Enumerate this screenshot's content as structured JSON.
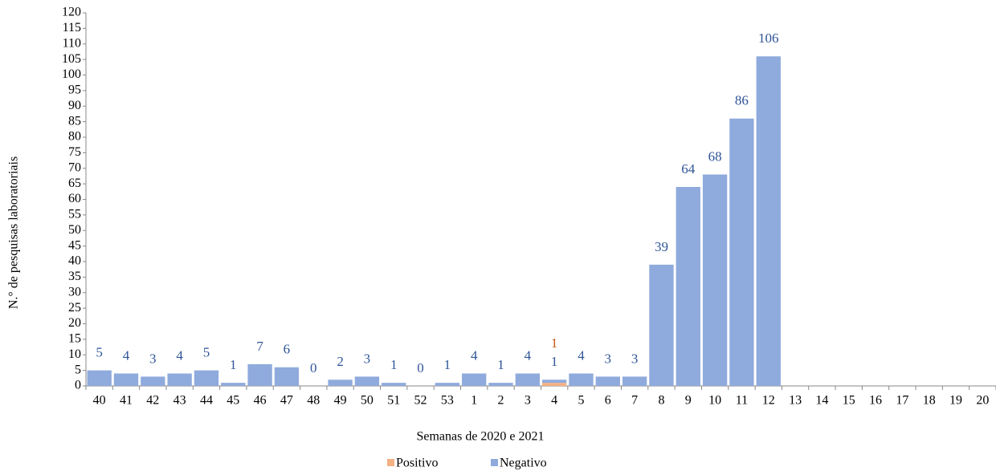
{
  "chart_data": {
    "type": "stacked-bar",
    "y_label": "N.° de pesquisas laboratoriais",
    "x_label": "Semanas de 2020 e 2021",
    "categories": [
      "40",
      "41",
      "42",
      "43",
      "44",
      "45",
      "46",
      "47",
      "48",
      "49",
      "50",
      "51",
      "52",
      "53",
      "1",
      "2",
      "3",
      "4",
      "5",
      "6",
      "7",
      "8",
      "9",
      "10",
      "11",
      "12",
      "13",
      "14",
      "15",
      "16",
      "17",
      "18",
      "19",
      "20"
    ],
    "series": [
      {
        "name": "Positivo",
        "color": "#f4b183",
        "label_color": "#c55a11",
        "values": [
          null,
          null,
          null,
          null,
          null,
          null,
          null,
          null,
          null,
          null,
          null,
          null,
          null,
          null,
          null,
          null,
          null,
          1,
          null,
          null,
          null,
          null,
          null,
          null,
          null,
          null,
          null,
          null,
          null,
          null,
          null,
          null,
          null,
          null
        ]
      },
      {
        "name": "Negativo",
        "color": "#8faadc",
        "label_color": "#2f5597",
        "values": [
          5,
          4,
          3,
          4,
          5,
          1,
          7,
          6,
          0,
          2,
          3,
          1,
          0,
          1,
          4,
          1,
          4,
          1,
          4,
          3,
          3,
          39,
          64,
          68,
          86,
          106,
          null,
          null,
          null,
          null,
          null,
          null,
          null,
          null
        ]
      }
    ],
    "ylim": [
      0,
      120
    ],
    "yticks": [
      0,
      5,
      10,
      15,
      20,
      25,
      30,
      35,
      40,
      45,
      50,
      55,
      60,
      65,
      70,
      75,
      80,
      85,
      90,
      95,
      100,
      105,
      110,
      115,
      120
    ]
  }
}
